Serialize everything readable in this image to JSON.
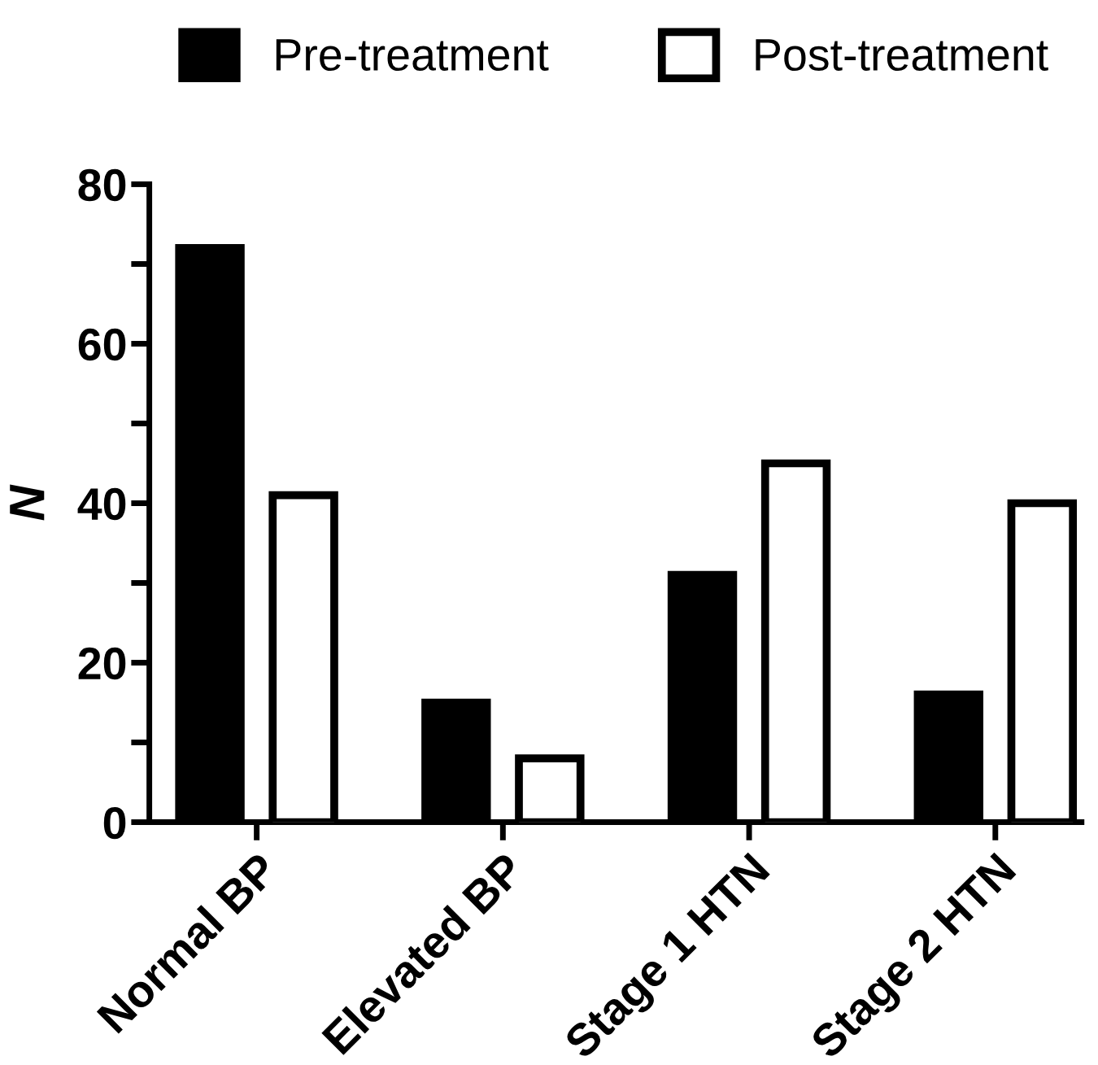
{
  "chart_data": {
    "type": "bar",
    "ylabel": "N",
    "categories": [
      "Normal BP",
      "Elevated BP",
      "Stage 1 HTN",
      "Stage 2 HTN"
    ],
    "series": [
      {
        "name": "Pre-treatment",
        "color": "#000000",
        "values": [
          72,
          15,
          31,
          16
        ]
      },
      {
        "name": "Post-treatment",
        "color": "#ffffff",
        "values": [
          41,
          8,
          45,
          40
        ]
      }
    ],
    "ylim": [
      0,
      80
    ],
    "yticks": [
      0,
      20,
      40,
      60,
      80
    ],
    "grid": false,
    "legend": "top"
  }
}
